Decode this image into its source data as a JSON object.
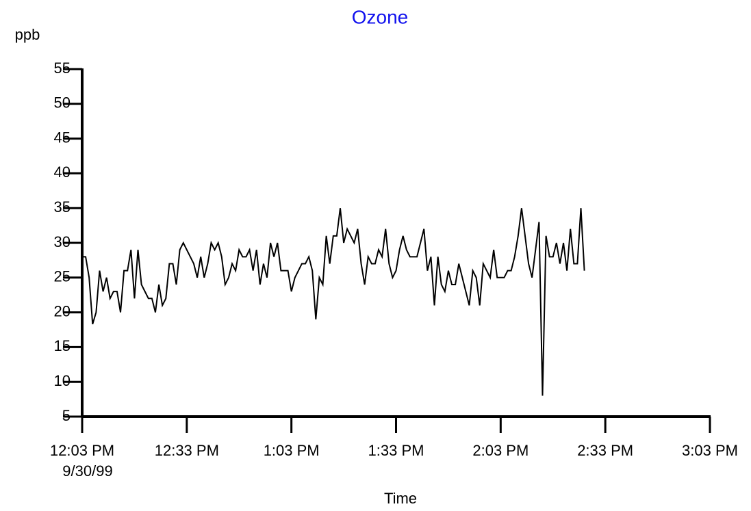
{
  "chart_data": {
    "type": "line",
    "title": "Ozone",
    "y_label": "ppb",
    "x_label": "Time",
    "date": "9/30/99",
    "title_color": "#1010ee",
    "grid": false,
    "x": [
      723,
      724,
      725,
      726,
      727,
      728,
      729,
      730,
      731,
      732,
      733,
      734,
      735,
      736,
      737,
      738,
      739,
      740,
      741,
      742,
      743,
      744,
      745,
      746,
      747,
      748,
      749,
      750,
      751,
      752,
      753,
      754,
      755,
      756,
      757,
      758,
      759,
      760,
      761,
      762,
      763,
      764,
      765,
      766,
      767,
      768,
      769,
      770,
      771,
      772,
      773,
      774,
      775,
      776,
      777,
      778,
      779,
      780,
      781,
      782,
      783,
      784,
      785,
      786,
      787,
      788,
      789,
      790,
      791,
      792,
      793,
      794,
      795,
      796,
      797,
      798,
      799,
      800,
      801,
      802,
      803,
      804,
      805,
      806,
      807,
      808,
      809,
      810,
      811,
      812,
      813,
      814,
      815,
      816,
      817,
      818,
      819,
      820,
      821,
      822,
      823,
      824,
      825,
      826,
      827,
      828,
      829,
      830,
      831,
      832,
      833,
      834,
      835,
      836,
      837,
      838,
      839,
      840,
      841,
      842,
      843,
      844,
      845,
      846,
      847,
      848,
      849,
      850,
      851,
      852,
      853,
      854,
      855,
      856,
      857,
      858,
      859,
      860,
      861,
      862,
      863,
      864,
      865,
      866,
      867
    ],
    "series": [
      {
        "name": "Ozone",
        "color": "#000000",
        "values": [
          28,
          28,
          25,
          18.3,
          20,
          26,
          23,
          25,
          22,
          23,
          23,
          20,
          26,
          26,
          29,
          22,
          29,
          24,
          23,
          22,
          22,
          20,
          24,
          21,
          22,
          27,
          27,
          24,
          29,
          30,
          29,
          28,
          27,
          25,
          28,
          25,
          27,
          30,
          29,
          30,
          28,
          24,
          25,
          27,
          26,
          29,
          28,
          28,
          29,
          26,
          29,
          24,
          27,
          25,
          30,
          28,
          30,
          26,
          26,
          26,
          23,
          25,
          26,
          27,
          27,
          28,
          26,
          19,
          25,
          24,
          31,
          27,
          31,
          31,
          35,
          30,
          32,
          31,
          30,
          32,
          27,
          24,
          28,
          27,
          27,
          29,
          28,
          32,
          27,
          25,
          26,
          29,
          31,
          29,
          28,
          28,
          28,
          30,
          32,
          26,
          28,
          21,
          28,
          24,
          23,
          26,
          24,
          24,
          27,
          25,
          23,
          21,
          26,
          25,
          21,
          27,
          26,
          25,
          29,
          25,
          25,
          25,
          26,
          26,
          28,
          31,
          35,
          31,
          27,
          25,
          29,
          33,
          8,
          31,
          28,
          28,
          30,
          27,
          30,
          26,
          32,
          27,
          27,
          35,
          26
        ]
      }
    ],
    "xlim": [
      723,
      903
    ],
    "xticks": [
      {
        "value": 723,
        "label": "12:03 PM"
      },
      {
        "value": 753,
        "label": "12:33 PM"
      },
      {
        "value": 783,
        "label": "1:03 PM"
      },
      {
        "value": 813,
        "label": "1:33 PM"
      },
      {
        "value": 843,
        "label": "2:03 PM"
      },
      {
        "value": 873,
        "label": "2:33 PM"
      },
      {
        "value": 903,
        "label": "3:03 PM"
      }
    ],
    "ylim": [
      5,
      55
    ],
    "yticks": [
      5,
      10,
      15,
      20,
      25,
      30,
      35,
      40,
      45,
      50,
      55
    ]
  }
}
